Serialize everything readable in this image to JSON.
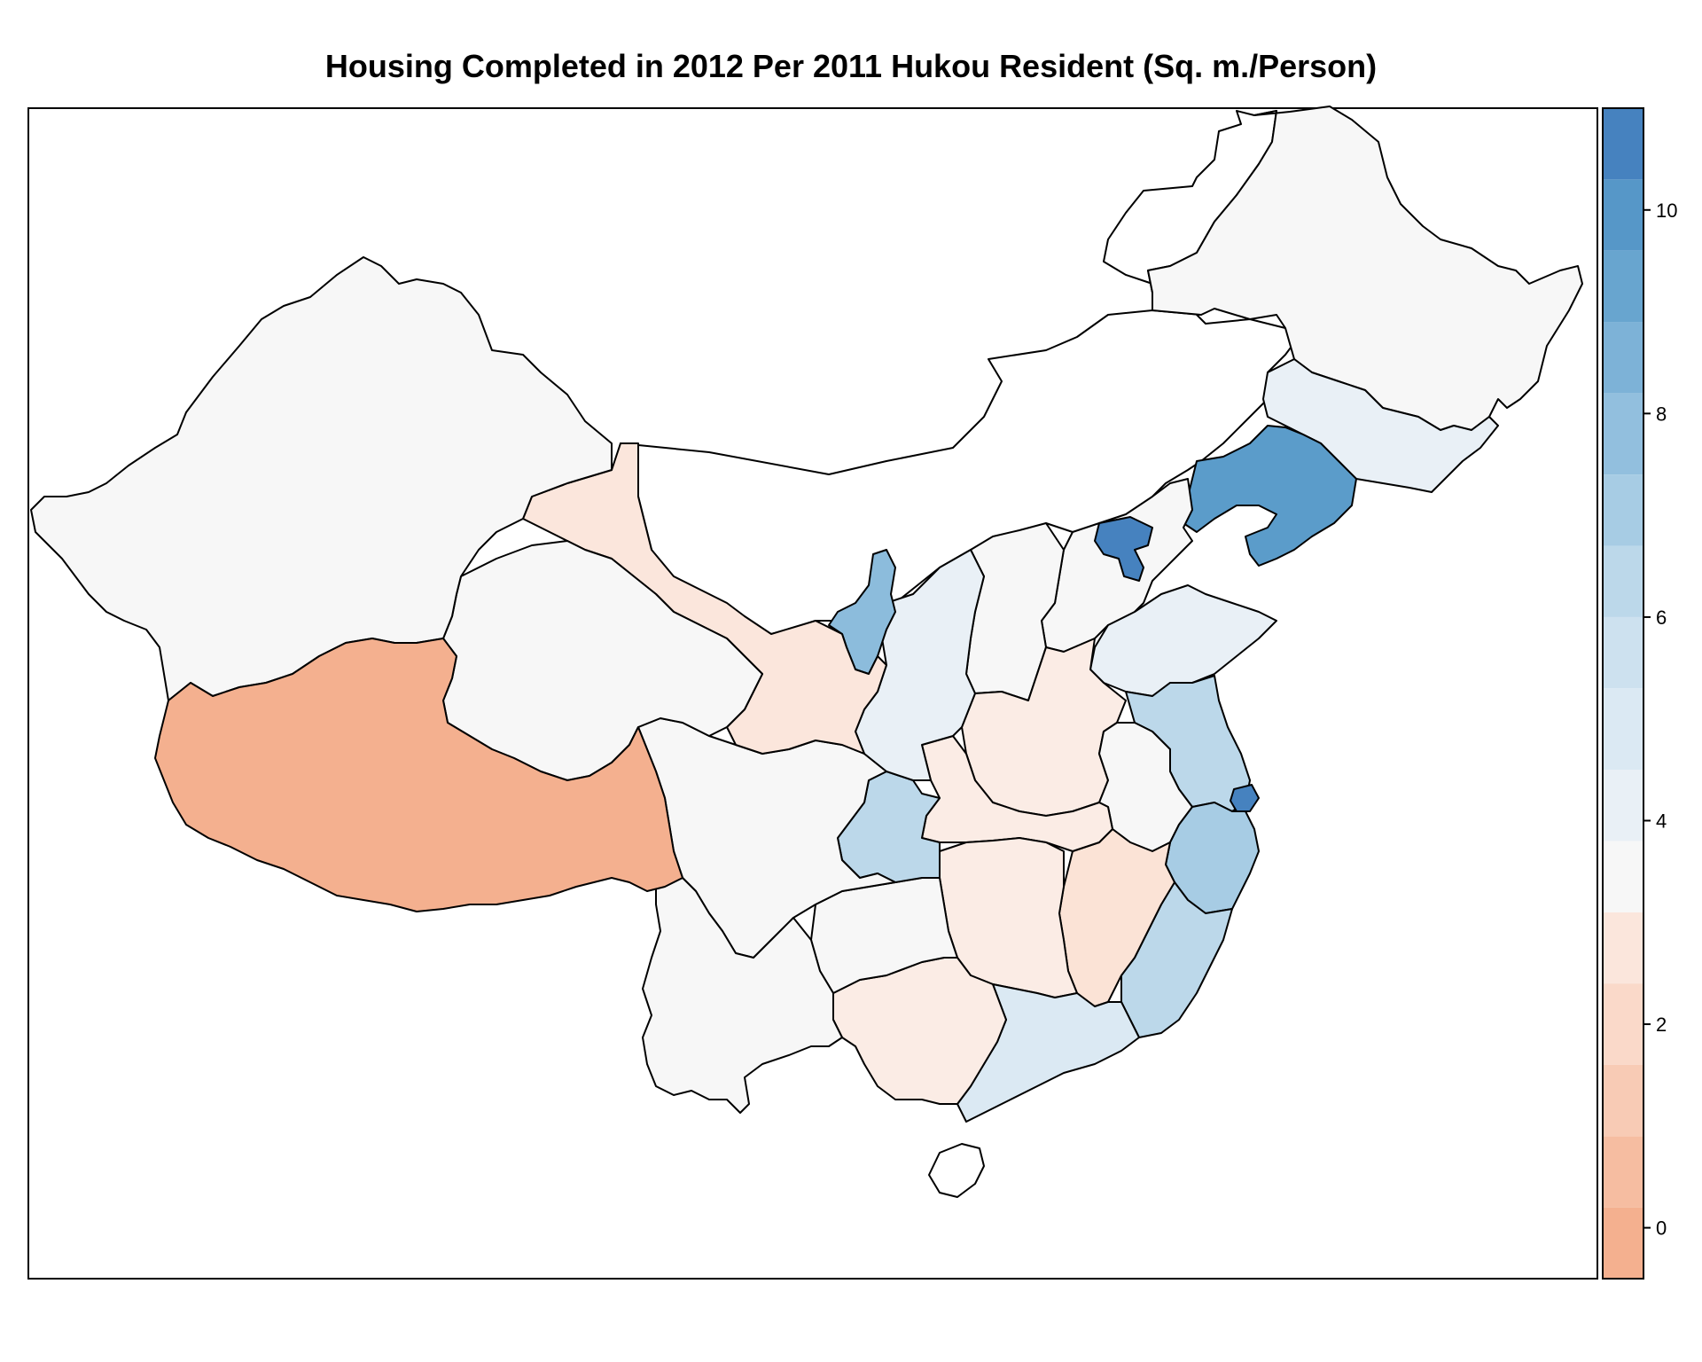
{
  "title": "Housing Completed in 2012 Per 2011 Hukou Resident (Sq. m./Person)",
  "legend": {
    "min": -0.5,
    "max": 11,
    "tick_labels": [
      "0",
      "2",
      "4",
      "6",
      "8",
      "10"
    ],
    "tick_values": [
      0,
      2,
      4,
      6,
      8,
      10
    ],
    "bins": [
      {
        "from": -0.5,
        "to": 0.2,
        "color": "#f4b08f"
      },
      {
        "from": 0.2,
        "to": 0.9,
        "color": "#f6bda1"
      },
      {
        "from": 0.9,
        "to": 1.6,
        "color": "#f8cbb5"
      },
      {
        "from": 1.6,
        "to": 2.4,
        "color": "#fad9c9"
      },
      {
        "from": 2.4,
        "to": 3.1,
        "color": "#fbe6dc"
      },
      {
        "from": 3.1,
        "to": 3.8,
        "color": "#f7f7f7"
      },
      {
        "from": 3.8,
        "to": 4.5,
        "color": "#e9f0f6"
      },
      {
        "from": 4.5,
        "to": 5.3,
        "color": "#dbe9f3"
      },
      {
        "from": 5.3,
        "to": 6.0,
        "color": "#cde1ef"
      },
      {
        "from": 6.0,
        "to": 6.7,
        "color": "#bcd8ea"
      },
      {
        "from": 6.7,
        "to": 7.4,
        "color": "#a7cce4"
      },
      {
        "from": 7.4,
        "to": 8.2,
        "color": "#92bfde"
      },
      {
        "from": 8.2,
        "to": 8.9,
        "color": "#7db2d7"
      },
      {
        "from": 8.9,
        "to": 9.6,
        "color": "#68a5cf"
      },
      {
        "from": 9.6,
        "to": 10.3,
        "color": "#5697c8"
      },
      {
        "from": 10.3,
        "to": 11.0,
        "color": "#4682bf"
      }
    ]
  },
  "regions": [
    {
      "key": "xinjiang",
      "color": "#f7f7f7"
    },
    {
      "key": "tibet",
      "color": "#f4b08f"
    },
    {
      "key": "qinghai",
      "color": "#f7f7f7"
    },
    {
      "key": "gansu",
      "color": "#fbe6dc"
    },
    {
      "key": "inner_mongolia",
      "color": "#ffffff"
    },
    {
      "key": "heilongjiang",
      "color": "#f7f7f7"
    },
    {
      "key": "jilin",
      "color": "#e9f0f6"
    },
    {
      "key": "liaoning",
      "color": "#5b9cca"
    },
    {
      "key": "hebei",
      "color": "#f7f7f7"
    },
    {
      "key": "beijing_tianjin",
      "color": "#4682bf"
    },
    {
      "key": "shanxi",
      "color": "#f7f7f7"
    },
    {
      "key": "shaanxi",
      "color": "#e9f0f6"
    },
    {
      "key": "ningxia",
      "color": "#8cbcdc"
    },
    {
      "key": "shandong",
      "color": "#e9f0f6"
    },
    {
      "key": "henan",
      "color": "#fbece5"
    },
    {
      "key": "jiangsu",
      "color": "#bcd8ea"
    },
    {
      "key": "shanghai",
      "color": "#4682bf"
    },
    {
      "key": "anhui",
      "color": "#f7f7f7"
    },
    {
      "key": "hubei",
      "color": "#fbece5"
    },
    {
      "key": "sichuan",
      "color": "#f7f7f7"
    },
    {
      "key": "chongqing",
      "color": "#bcd8ea"
    },
    {
      "key": "zhejiang",
      "color": "#a7cce4"
    },
    {
      "key": "fujian",
      "color": "#bcd8ea"
    },
    {
      "key": "jiangxi",
      "color": "#fbe3d6"
    },
    {
      "key": "hunan",
      "color": "#fbece5"
    },
    {
      "key": "guizhou",
      "color": "#f7f7f7"
    },
    {
      "key": "yunnan",
      "color": "#f7f7f7"
    },
    {
      "key": "guangxi",
      "color": "#fbece5"
    },
    {
      "key": "guangdong",
      "color": "#dbe9f3"
    },
    {
      "key": "hainan",
      "color": "#ffffff"
    }
  ]
}
